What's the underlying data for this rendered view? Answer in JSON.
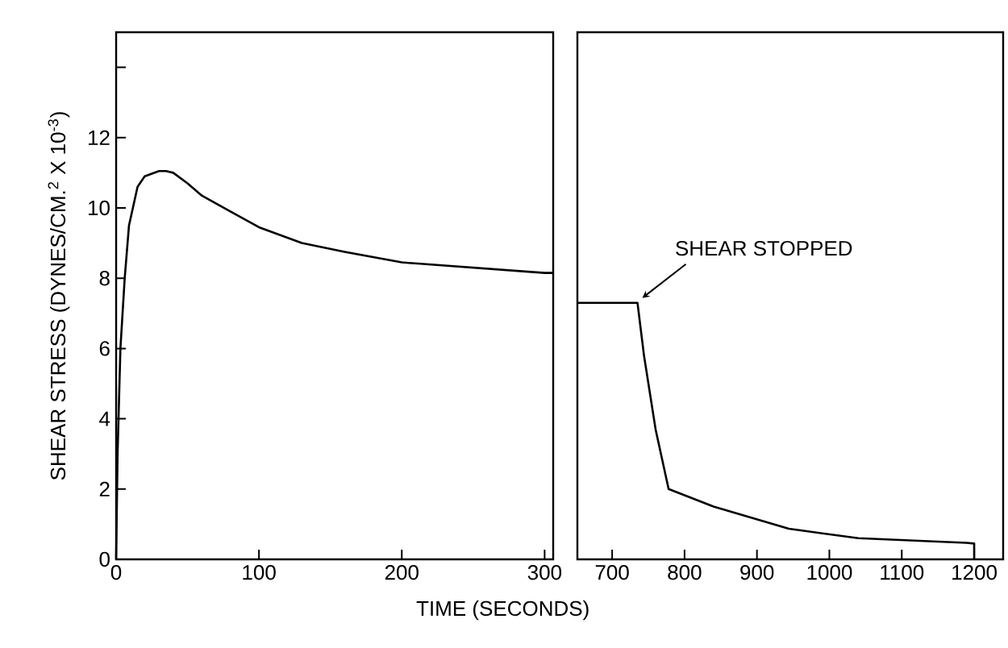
{
  "chart_data": [
    {
      "type": "line",
      "ylabel": "SHEAR STRESS (DYNES/CM.$^{2}$ X 10$^{-3}$)",
      "xlabel": "TIME (SECONDS)",
      "xlim": [
        0,
        306
      ],
      "ylim": [
        0,
        15
      ],
      "xticks": [
        0,
        100,
        200,
        300
      ],
      "yticks": [
        0,
        2,
        4,
        6,
        8,
        10,
        12,
        {
          "value": 14,
          "label": null
        }
      ],
      "grid": false,
      "marker": "none",
      "line_style": "solid",
      "series": [
        {
          "color": "#000000",
          "x": [
            0,
            1,
            3,
            6,
            9,
            15,
            20,
            30,
            35,
            40,
            50,
            60,
            80,
            100,
            130,
            160,
            200,
            250,
            300,
            306
          ],
          "values": [
            0,
            3,
            6,
            8,
            9.5,
            10.6,
            10.9,
            11.05,
            11.05,
            11.0,
            10.7,
            10.35,
            9.9,
            9.45,
            9.0,
            8.75,
            8.45,
            8.3,
            8.15,
            8.15
          ]
        }
      ]
    },
    {
      "type": "line",
      "xlim": [
        652,
        1240
      ],
      "ylim": [
        0,
        15
      ],
      "xticks": [
        700,
        800,
        900,
        1000,
        1100,
        1200
      ],
      "tick_labels": "x",
      "grid": false,
      "marker": "none",
      "line_style": "solid",
      "annotations": [
        {
          "text": "SHEAR STOPPED",
          "x": 735,
          "y": 7.3
        }
      ],
      "series": [
        {
          "color": "#000000",
          "x": [
            652,
            700,
            735,
            744,
            760,
            778,
            840,
            944,
            1040,
            1189,
            1200,
            1200
          ],
          "values": [
            7.3,
            7.3,
            7.3,
            5.8,
            3.7,
            2.0,
            1.5,
            0.87,
            0.6,
            0.47,
            0.45,
            0
          ]
        }
      ]
    }
  ]
}
